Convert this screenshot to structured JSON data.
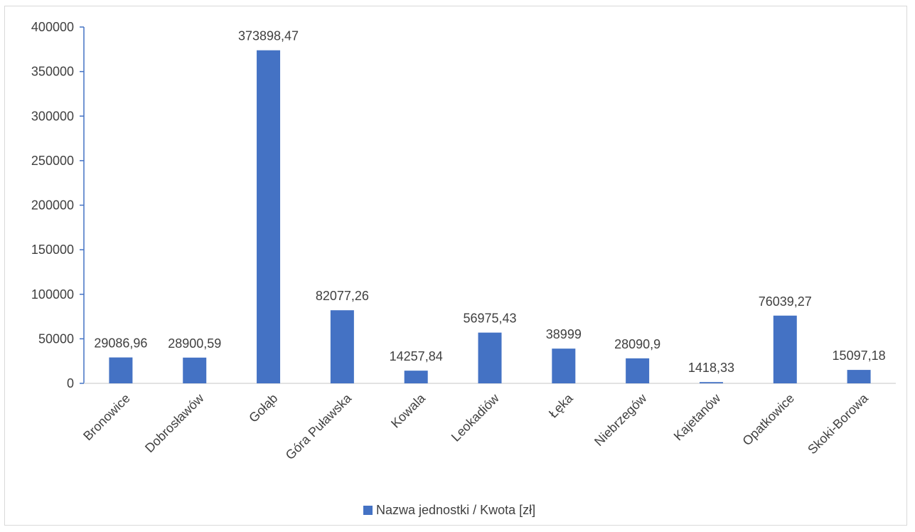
{
  "chart_data": {
    "type": "bar",
    "title": "",
    "xlabel": "",
    "ylabel": "",
    "ylim": [
      0,
      400000
    ],
    "yticks": [
      0,
      50000,
      100000,
      150000,
      200000,
      250000,
      300000,
      350000,
      400000
    ],
    "grid": false,
    "legend_position": "bottom",
    "categories": [
      "Bronowice",
      "Dobrosławów",
      "Gołąb",
      "Góra Puławska",
      "Kowala",
      "Leokadiów",
      "Łęka",
      "Niebrzegów",
      "Kajetanów",
      "Opatkowice",
      "Skoki-Borowa"
    ],
    "series": [
      {
        "name": "Nazwa jednostki / Kwota [zł]",
        "color": "#4472c4",
        "values": [
          29086.96,
          28900.59,
          373898.47,
          82077.26,
          14257.84,
          56975.43,
          38999,
          28090.9,
          1418.33,
          76039.27,
          15097.18
        ],
        "data_labels": [
          "29086,96",
          "28900,59",
          "373898,47",
          "82077,26",
          "14257,84",
          "56975,43",
          "38999",
          "28090,9",
          "1418,33",
          "76039,27",
          "15097,18"
        ]
      }
    ]
  }
}
